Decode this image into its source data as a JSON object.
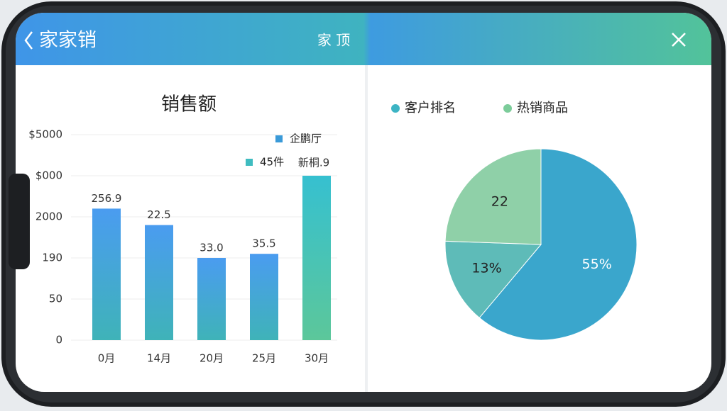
{
  "header": {
    "title": "家家销",
    "action": "家 顶"
  },
  "chart_data": [
    {
      "type": "bar",
      "title": "销售额",
      "categories": [
        "0月",
        "14月",
        "20月",
        "25月",
        "30月"
      ],
      "values": [
        3.2,
        2.8,
        2.0,
        2.1,
        4.0
      ],
      "value_labels": [
        "256.9",
        "22.5",
        "33.0",
        "35.5",
        "新桐.9"
      ],
      "gradient": [
        "#4a9cf0",
        "#3fb3b8"
      ],
      "highlight_gradient": [
        "#36c0d0",
        "#5cc79a"
      ],
      "ylim": [
        0,
        5
      ],
      "yticks": [
        0,
        {
          "value": 1,
          "label": "50"
        },
        {
          "value": 2,
          "label": "190"
        },
        {
          "value": 3,
          "label": "2000"
        },
        {
          "value": 4,
          "label": "$000"
        },
        {
          "value": 5,
          "label": "$5000"
        }
      ],
      "grid": true,
      "legend": [
        {
          "label": "企鹏厅",
          "color": "#3a9ad8"
        },
        {
          "label": "45件",
          "color": "#3fbcc0"
        }
      ]
    },
    {
      "type": "pie",
      "categories": [
        "客户排名",
        null,
        "热销商品"
      ],
      "values": [
        55,
        13,
        22
      ],
      "value_labels": [
        "55%",
        "13%",
        "22"
      ],
      "colors": [
        "#3aa6cc",
        "#5ebbb8",
        "#8fd0a8"
      ],
      "legend": [
        {
          "label": "客户排名",
          "color": "#3cb4c4"
        },
        {
          "label": "热销商品",
          "color": "#7ccc9a"
        }
      ]
    }
  ]
}
